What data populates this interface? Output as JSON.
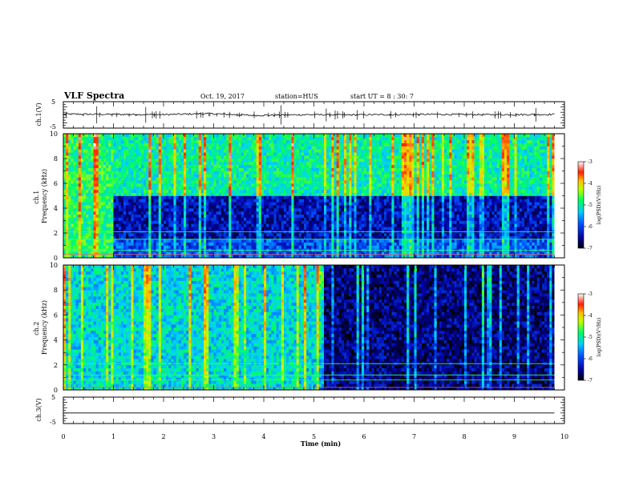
{
  "header": {
    "title": "VLF Spectra",
    "date": "Oct. 19, 2017",
    "station": "station=HUS",
    "start_ut": "start UT =  8 : 30: 7"
  },
  "chart_data": [
    {
      "type": "line",
      "panel": "ch1-waveform",
      "ylabel": "ch.1(V)",
      "ylim": [
        -5,
        5
      ],
      "yticks": [
        "5",
        "-5"
      ],
      "xlim": [
        0,
        10
      ],
      "x": [
        0.0,
        1.0,
        2.0,
        2.9,
        3.8,
        4.9,
        5.6,
        6.5,
        7.4,
        8.3,
        9.2,
        9.8
      ],
      "values": [
        0.3,
        0.2,
        0.1,
        0.5,
        -0.2,
        0.1,
        0.0,
        0.1,
        0.2,
        0.1,
        0.1,
        0.2
      ]
    },
    {
      "type": "heatmap",
      "panel": "ch1-spectrogram",
      "ylabel": "ch.1\nFrequency (kHz)",
      "xlim": [
        0,
        10
      ],
      "ylim": [
        0,
        10
      ],
      "yticks": [
        "0",
        "2",
        "4",
        "6",
        "8",
        "10"
      ],
      "data_end_min": 9.8,
      "colorbar": {
        "label": "log(PSD)(V²/Hz)",
        "range": [
          -7,
          -3
        ],
        "ticks": [
          "-3",
          "-4",
          "-5",
          "-6",
          "-7"
        ]
      },
      "bands": [
        {
          "fmin": 0,
          "fmax": 10,
          "tmin": 0,
          "tmax": 1.0,
          "level": -5.0
        },
        {
          "fmin": 5,
          "fmax": 10,
          "tmin": 1.0,
          "tmax": 9.8,
          "level": -5.2
        },
        {
          "fmin": 1.5,
          "fmax": 5,
          "tmin": 1.0,
          "tmax": 9.8,
          "level": -6.4
        },
        {
          "fmin": 0,
          "fmax": 1.5,
          "tmin": 1.0,
          "tmax": 9.8,
          "level": -6.0
        }
      ],
      "lines_khz": [
        0.3,
        0.6,
        1.5,
        2.1
      ]
    },
    {
      "type": "heatmap",
      "panel": "ch2-spectrogram",
      "ylabel": "ch.2\nFrequency (kHz)",
      "xlim": [
        0,
        10
      ],
      "ylim": [
        0,
        10
      ],
      "yticks": [
        "0",
        "2",
        "4",
        "6",
        "8",
        "10"
      ],
      "data_end_min": 9.8,
      "colorbar": {
        "label": "log(PSD)(V²/Hz)",
        "range": [
          -7,
          -3
        ],
        "ticks": [
          "-3",
          "-4",
          "-5",
          "-6",
          "-7"
        ]
      },
      "bands": [
        {
          "fmin": 0,
          "fmax": 10,
          "tmin": 0,
          "tmax": 5.1,
          "level": -5.4
        },
        {
          "fmin": 0,
          "fmax": 10,
          "tmin": 5.1,
          "tmax": 9.8,
          "level": -6.6
        }
      ],
      "lines_khz": [
        0.2,
        0.8,
        1.2,
        2.1
      ]
    },
    {
      "type": "line",
      "panel": "ch3-waveform",
      "ylabel": "ch.3(V)",
      "ylim": [
        -5,
        5
      ],
      "yticks": [
        "5",
        "-5"
      ],
      "xlim": [
        0,
        10
      ],
      "x": [
        0.0,
        9.8
      ],
      "values": [
        -1.0,
        -1.0
      ]
    }
  ],
  "xaxis": {
    "label": "Time (min)",
    "ticks": [
      "0",
      "1",
      "2",
      "3",
      "4",
      "5",
      "6",
      "7",
      "8",
      "9",
      "10"
    ]
  }
}
